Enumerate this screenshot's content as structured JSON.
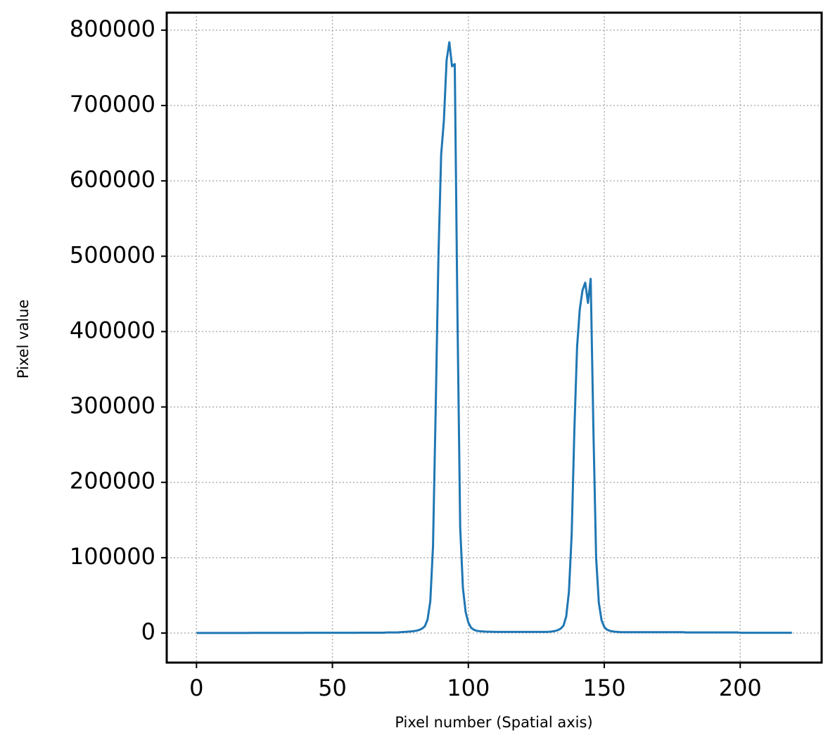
{
  "chart_data": {
    "type": "line",
    "x_label": "Pixel number (Spatial axis)",
    "y_label": "Pixel value",
    "x": [
      0,
      1,
      2,
      3,
      4,
      5,
      6,
      7,
      8,
      9,
      10,
      11,
      12,
      13,
      14,
      15,
      16,
      17,
      18,
      19,
      20,
      21,
      22,
      23,
      24,
      25,
      26,
      27,
      28,
      29,
      30,
      31,
      32,
      33,
      34,
      35,
      36,
      37,
      38,
      39,
      40,
      41,
      42,
      43,
      44,
      45,
      46,
      47,
      48,
      49,
      50,
      51,
      52,
      53,
      54,
      55,
      56,
      57,
      58,
      59,
      60,
      61,
      62,
      63,
      64,
      65,
      66,
      67,
      68,
      69,
      70,
      71,
      72,
      73,
      74,
      75,
      76,
      77,
      78,
      79,
      80,
      81,
      82,
      83,
      84,
      85,
      86,
      87,
      88,
      89,
      90,
      91,
      92,
      93,
      94,
      95,
      96,
      97,
      98,
      99,
      100,
      101,
      102,
      103,
      104,
      105,
      106,
      107,
      108,
      109,
      110,
      111,
      112,
      113,
      114,
      115,
      116,
      117,
      118,
      119,
      120,
      121,
      122,
      123,
      124,
      125,
      126,
      127,
      128,
      129,
      130,
      131,
      132,
      133,
      134,
      135,
      136,
      137,
      138,
      139,
      140,
      141,
      142,
      143,
      144,
      145,
      146,
      147,
      148,
      149,
      150,
      151,
      152,
      153,
      154,
      155,
      156,
      157,
      158,
      159,
      160,
      161,
      162,
      163,
      164,
      165,
      166,
      167,
      168,
      169,
      170,
      171,
      172,
      173,
      174,
      175,
      176,
      177,
      178,
      179,
      180,
      181,
      182,
      183,
      184,
      185,
      186,
      187,
      188,
      189,
      190,
      191,
      192,
      193,
      194,
      195,
      196,
      197,
      198,
      199,
      200,
      201,
      202,
      203,
      204,
      205,
      206,
      207,
      208,
      209,
      210,
      211,
      212,
      213,
      214,
      215,
      216,
      217,
      218,
      219
    ],
    "series": [
      {
        "color": "#1f77b4",
        "values": [
          100,
          100,
          100,
          100,
          100,
          100,
          100,
          100,
          100,
          100,
          100,
          100,
          100,
          100,
          100,
          100,
          100,
          100,
          100,
          100,
          200,
          200,
          200,
          200,
          200,
          200,
          200,
          200,
          200,
          200,
          200,
          200,
          200,
          200,
          200,
          200,
          200,
          200,
          200,
          200,
          300,
          300,
          300,
          300,
          300,
          300,
          300,
          300,
          300,
          300,
          300,
          300,
          300,
          300,
          300,
          300,
          300,
          300,
          300,
          300,
          500,
          500,
          500,
          500,
          500,
          500,
          500,
          500,
          500,
          500,
          800,
          800,
          800,
          800,
          800,
          1200,
          1400,
          1600,
          1900,
          2200,
          2600,
          3200,
          4200,
          6000,
          9000,
          18000,
          42000,
          115000,
          300000,
          500000,
          635000,
          680000,
          760000,
          784000,
          752000,
          755000,
          420000,
          140000,
          60000,
          28000,
          14000,
          7000,
          4500,
          3000,
          2500,
          2200,
          2000,
          1800,
          1700,
          1600,
          1500,
          1500,
          1500,
          1500,
          1500,
          1500,
          1500,
          1500,
          1500,
          1500,
          1500,
          1500,
          1500,
          1500,
          1500,
          1500,
          1500,
          1500,
          1500,
          1500,
          1800,
          2200,
          2800,
          4000,
          6000,
          10000,
          22000,
          55000,
          130000,
          270000,
          380000,
          430000,
          455000,
          465000,
          438000,
          470000,
          270000,
          100000,
          40000,
          17000,
          8000,
          4500,
          3000,
          2200,
          1800,
          1500,
          1200,
          1200,
          1200,
          1200,
          1200,
          1200,
          1200,
          1200,
          1200,
          1200,
          1200,
          1200,
          1200,
          1200,
          1200,
          1200,
          1200,
          1200,
          1200,
          1200,
          1200,
          1200,
          1200,
          1200,
          800,
          800,
          800,
          800,
          800,
          800,
          800,
          800,
          800,
          800,
          800,
          800,
          800,
          800,
          800,
          800,
          800,
          800,
          800,
          800,
          400,
          400,
          400,
          400,
          400,
          400,
          400,
          400,
          400,
          400,
          400,
          400,
          400,
          400,
          400,
          400,
          400,
          400,
          400,
          400
        ]
      }
    ],
    "xlim": [
      -10.95,
      229.95
    ],
    "ylim": [
      -39200,
      823200
    ],
    "xticks": [
      0,
      50,
      100,
      150,
      200
    ],
    "yticks": [
      0,
      100000,
      200000,
      300000,
      400000,
      500000,
      600000,
      700000,
      800000
    ],
    "grid": true
  }
}
